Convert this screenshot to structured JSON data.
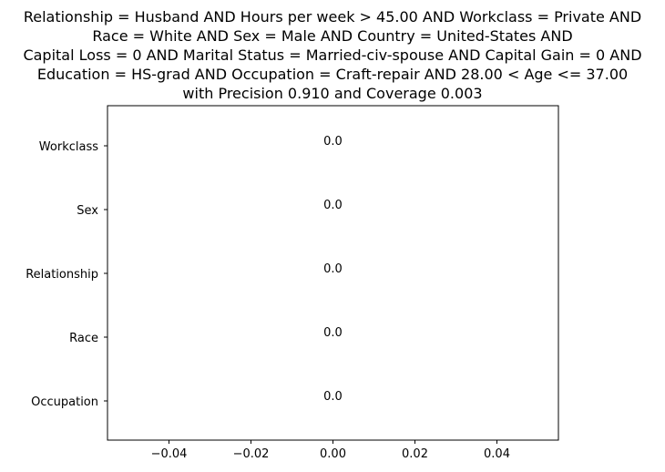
{
  "chart_data": {
    "type": "bar",
    "orientation": "horizontal",
    "title_lines": [
      "Relationship = Husband AND Hours per week > 45.00 AND Workclass = Private AND",
      "Race = White AND Sex = Male AND Country = United-States AND",
      "Capital Loss = 0 AND Marital Status = Married-civ-spouse AND Capital Gain = 0 AND",
      "Education = HS-grad AND Occupation = Craft-repair AND 28.00 < Age <= 37.00",
      "with Precision 0.910 and Coverage 0.003"
    ],
    "categories": [
      "Workclass",
      "Sex",
      "Relationship",
      "Race",
      "Occupation"
    ],
    "values": [
      0.0,
      0.0,
      0.0,
      0.0,
      0.0
    ],
    "data_labels": [
      "0.0",
      "0.0",
      "0.0",
      "0.0",
      "0.0"
    ],
    "xlim": [
      -0.055,
      0.055
    ],
    "xticks": [
      -0.04,
      -0.02,
      0.0,
      0.02,
      0.04
    ],
    "xtick_labels": [
      "−0.04",
      "−0.02",
      "0.00",
      "0.02",
      "0.04"
    ],
    "xlabel": "",
    "ylabel": "",
    "grid": false,
    "colors": {
      "bar": "#1f77b4",
      "axis": "#000000"
    }
  }
}
